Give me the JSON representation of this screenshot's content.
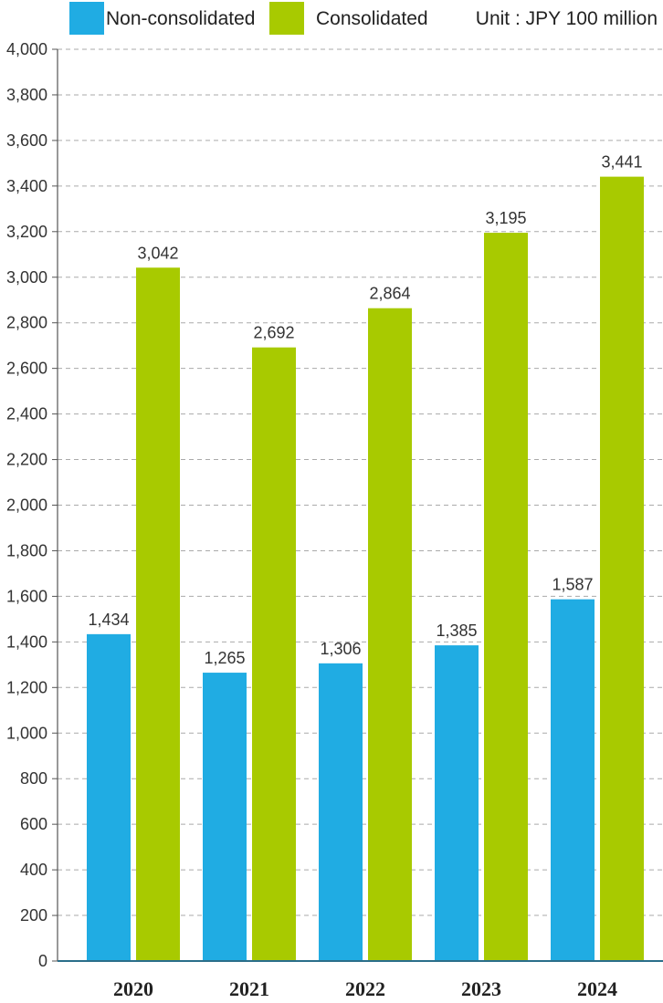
{
  "chart_data": {
    "type": "bar",
    "unit_label": "Unit : JPY 100 million",
    "categories": [
      "2020",
      "2021",
      "2022",
      "2023",
      "2024"
    ],
    "series": [
      {
        "name": "Non-consolidated",
        "color": "#20ace3",
        "values": [
          1434,
          1265,
          1306,
          1385,
          1587
        ]
      },
      {
        "name": "Consolidated",
        "color": "#a8ca00",
        "values": [
          3042,
          2692,
          2864,
          3195,
          3441
        ]
      }
    ],
    "ylim": [
      0,
      4000
    ],
    "yticks": [
      "0",
      "200",
      "400",
      "600",
      "800",
      "1,000",
      "1,200",
      "1,400",
      "1,600",
      "1,800",
      "2,000",
      "2,200",
      "2,400",
      "2,600",
      "2,800",
      "3,000",
      "3,200",
      "3,400",
      "3,600",
      "3,800",
      "4,000"
    ],
    "data_labels": [
      [
        "1,434",
        "1,265",
        "1,306",
        "1,385",
        "1,587"
      ],
      [
        "3,042",
        "2,692",
        "2,864",
        "3,195",
        "3,441"
      ]
    ],
    "grid": true,
    "legend_position": "top"
  }
}
